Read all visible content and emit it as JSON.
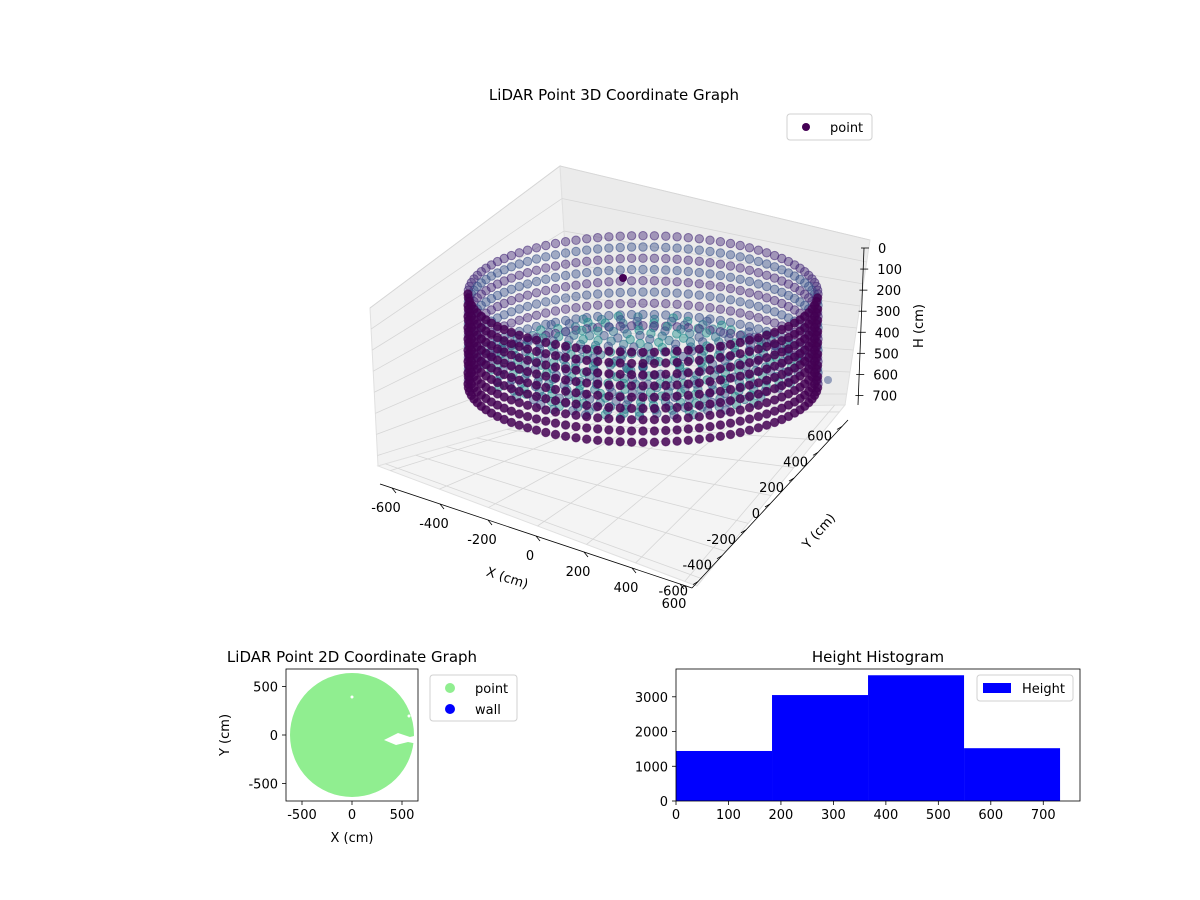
{
  "chart_data": [
    {
      "type": "scatter3d",
      "title": "LiDAR Point 3D Coordinate Graph",
      "xlabel": "X (cm)",
      "ylabel": "Y (cm)",
      "zlabel": "H (cm)",
      "xlim": [
        -650,
        650
      ],
      "ylim": [
        -650,
        650
      ],
      "zlim": [
        750,
        0
      ],
      "xticks": [
        -600,
        -400,
        -200,
        0,
        200,
        400,
        600
      ],
      "yticks": [
        -600,
        -400,
        -200,
        0,
        200,
        400,
        600
      ],
      "zticks": [
        0,
        100,
        200,
        300,
        400,
        500,
        600,
        700
      ],
      "grid": true,
      "legend_position": "top-right",
      "series": [
        {
          "name": "point",
          "color": "#440154",
          "shape": {
            "kind": "cylinder-wall",
            "radius": 620,
            "h_range": [
              0,
              730
            ]
          }
        }
      ],
      "colormap": "viridis"
    },
    {
      "type": "scatter",
      "title": "LiDAR Point 2D Coordinate Graph",
      "xlabel": "X (cm)",
      "ylabel": "Y (cm)",
      "xlim": [
        -660,
        660
      ],
      "ylim": [
        -680,
        680
      ],
      "xticks": [
        -500,
        0,
        500
      ],
      "yticks": [
        -500,
        0,
        500
      ],
      "legend_position": "outside-right",
      "series": [
        {
          "name": "point",
          "color": "#90ee90",
          "shape": {
            "kind": "disk",
            "cx": 0,
            "cy": 0,
            "radius": 620
          }
        },
        {
          "name": "wall",
          "color": "#0000ff"
        }
      ]
    },
    {
      "type": "bar",
      "title": "Height Histogram",
      "xlim": [
        0,
        770
      ],
      "ylim": [
        0,
        3800
      ],
      "xticks": [
        0,
        100,
        200,
        300,
        400,
        500,
        600,
        700
      ],
      "yticks": [
        0,
        1000,
        2000,
        3000
      ],
      "legend_position": "top-right",
      "series": [
        {
          "name": "Height",
          "color": "#0000ff",
          "bins": [
            {
              "from": 0,
              "to": 183,
              "count": 1440
            },
            {
              "from": 183,
              "to": 366,
              "count": 3050
            },
            {
              "from": 366,
              "to": 549,
              "count": 3620
            },
            {
              "from": 549,
              "to": 732,
              "count": 1520
            }
          ]
        }
      ]
    }
  ]
}
